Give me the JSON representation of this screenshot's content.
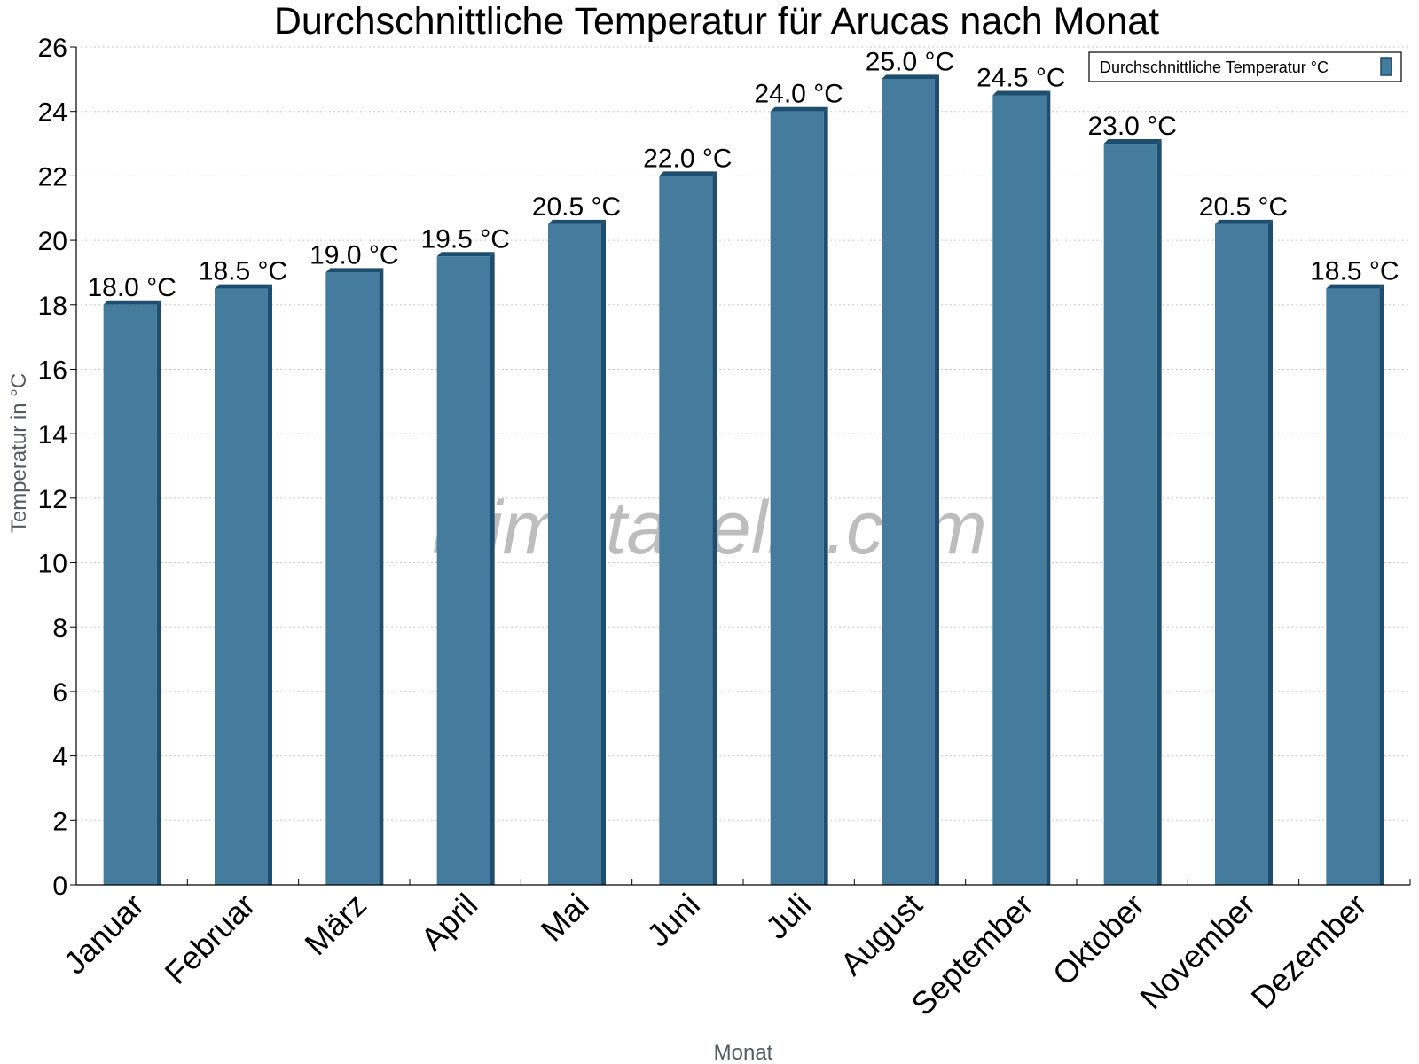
{
  "chart_data": {
    "type": "bar",
    "title": "Durchschnittliche Temperatur für Arucas nach Monat",
    "xlabel": "Monat",
    "ylabel": "Temperatur in °C",
    "categories": [
      "Januar",
      "Februar",
      "März",
      "April",
      "Mai",
      "Juni",
      "Juli",
      "August",
      "September",
      "Oktober",
      "November",
      "Dezember"
    ],
    "series": [
      {
        "name": "Durchschnittliche Temperatur °C",
        "values": [
          18.0,
          18.5,
          19.0,
          19.5,
          20.5,
          22.0,
          24.0,
          25.0,
          24.5,
          23.0,
          20.5,
          18.5
        ],
        "value_labels": [
          "18.0 °C",
          "18.5 °C",
          "19.0 °C",
          "19.5 °C",
          "20.5 °C",
          "22.0 °C",
          "24.0 °C",
          "25.0 °C",
          "24.5 °C",
          "23.0 °C",
          "20.5 °C",
          "18.5 °C"
        ],
        "color": "#457b9d",
        "shade_color": "#1d4e6f"
      }
    ],
    "ylim": [
      0,
      26
    ],
    "yticks": [
      0,
      2,
      4,
      6,
      8,
      10,
      12,
      14,
      16,
      18,
      20,
      22,
      24,
      26
    ],
    "grid": true,
    "legend_position": "top-right",
    "watermark": "klimatabelle.com"
  }
}
